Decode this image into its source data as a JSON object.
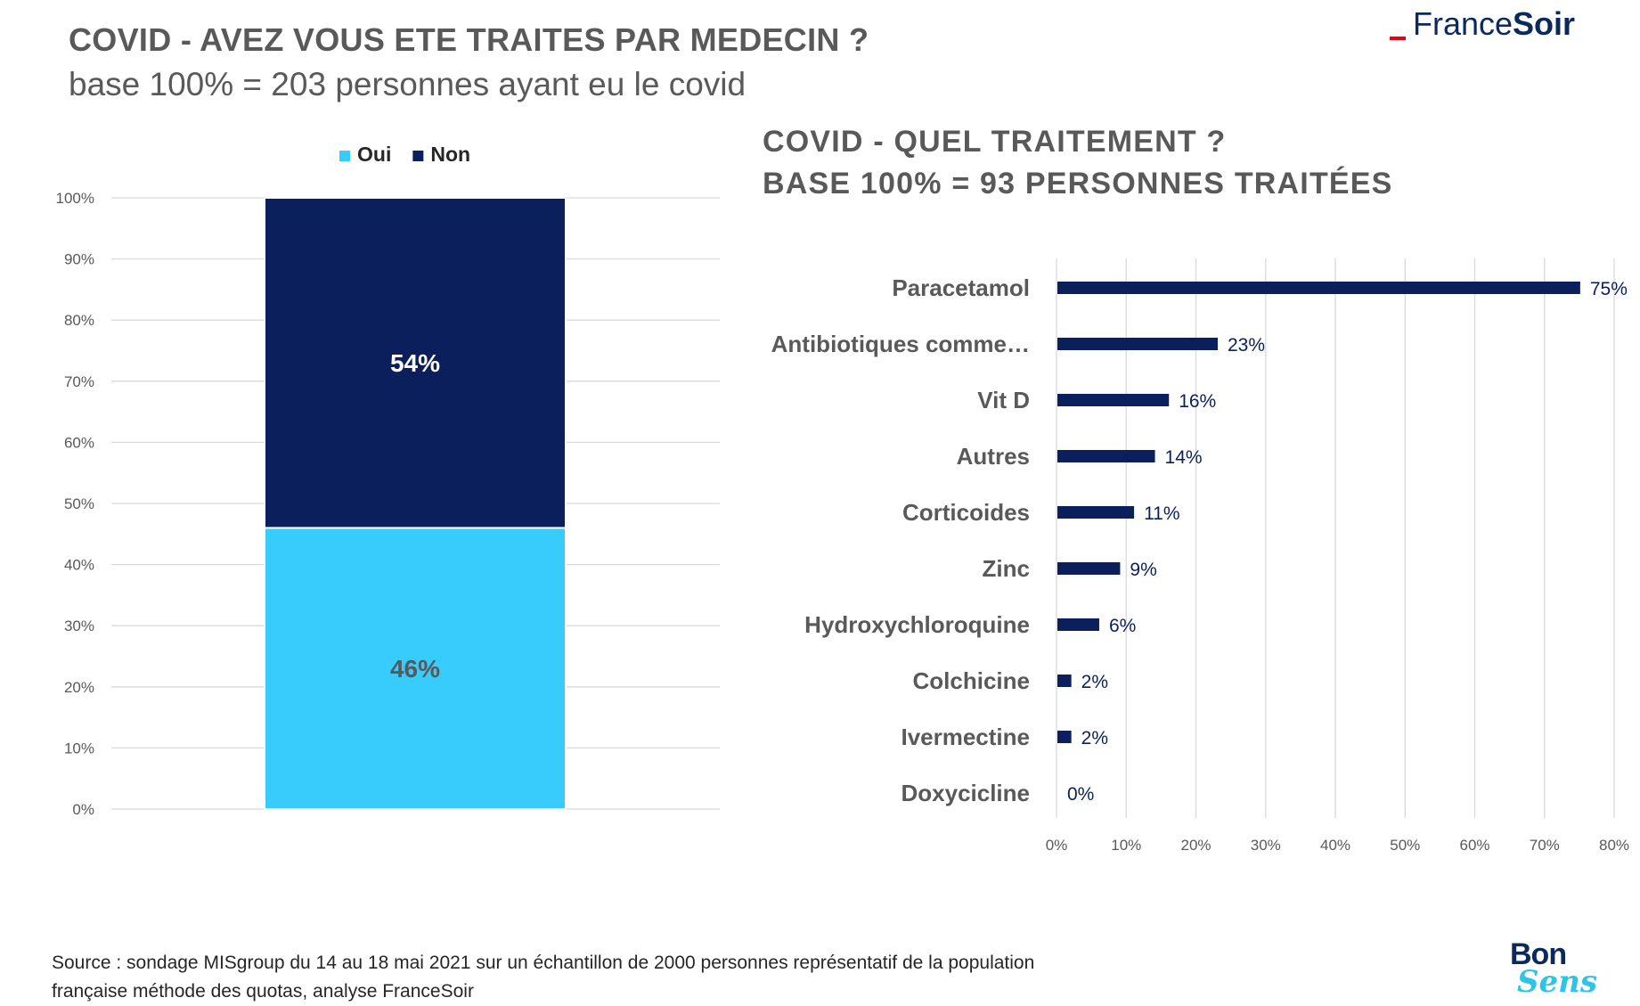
{
  "header": {
    "title": "COVID - AVEZ VOUS ETE TRAITES PAR MEDECIN ?",
    "subtitle": "base 100% = 203 personnes ayant eu le covid"
  },
  "logo": {
    "france": "France",
    "soir": "Soir"
  },
  "right_title": {
    "line1": "COVID - QUEL TRAITEMENT ?",
    "line2": "BASE 100% = 93 PERSONNES TRAITÉES"
  },
  "footer": {
    "source_line1": "Source : sondage MISgroup du 14 au 18 mai 2021 sur un échantillon de 2000 personnes représentatif de la population",
    "source_line2": "française méthode des quotas, analyse FranceSoir"
  },
  "bonsens": {
    "bon": "Bon",
    "sens": "Sens"
  },
  "colors": {
    "oui": "#38ccfc",
    "non": "#0a1f5c",
    "bar": "#0a1f5c",
    "grid": "#d9d9d9"
  },
  "chart_data": [
    {
      "type": "bar",
      "stacked": true,
      "categories": [
        ""
      ],
      "series": [
        {
          "name": "Oui",
          "values": [
            46
          ],
          "label": "46%"
        },
        {
          "name": "Non",
          "values": [
            54
          ],
          "label": "54%"
        }
      ],
      "ylim": [
        0,
        100
      ],
      "yticks": [
        "0%",
        "10%",
        "20%",
        "30%",
        "40%",
        "50%",
        "60%",
        "70%",
        "80%",
        "90%",
        "100%"
      ],
      "legend": "top",
      "grid": true
    },
    {
      "type": "bar",
      "orientation": "horizontal",
      "categories": [
        "Paracetamol",
        "Antibiotiques comme…",
        "Vit D",
        "Autres",
        "Corticoides",
        "Zinc",
        "Hydroxychloroquine",
        "Colchicine",
        "Ivermectine",
        "Doxycicline"
      ],
      "values": [
        75,
        23,
        16,
        14,
        11,
        9,
        6,
        2,
        2,
        0
      ],
      "value_labels": [
        "75%",
        "23%",
        "16%",
        "14%",
        "11%",
        "9%",
        "6%",
        "2%",
        "2%",
        "0%"
      ],
      "xlim": [
        0,
        80
      ],
      "xticks": [
        "0%",
        "10%",
        "20%",
        "30%",
        "40%",
        "50%",
        "60%",
        "70%",
        "80%"
      ],
      "grid": true
    }
  ]
}
